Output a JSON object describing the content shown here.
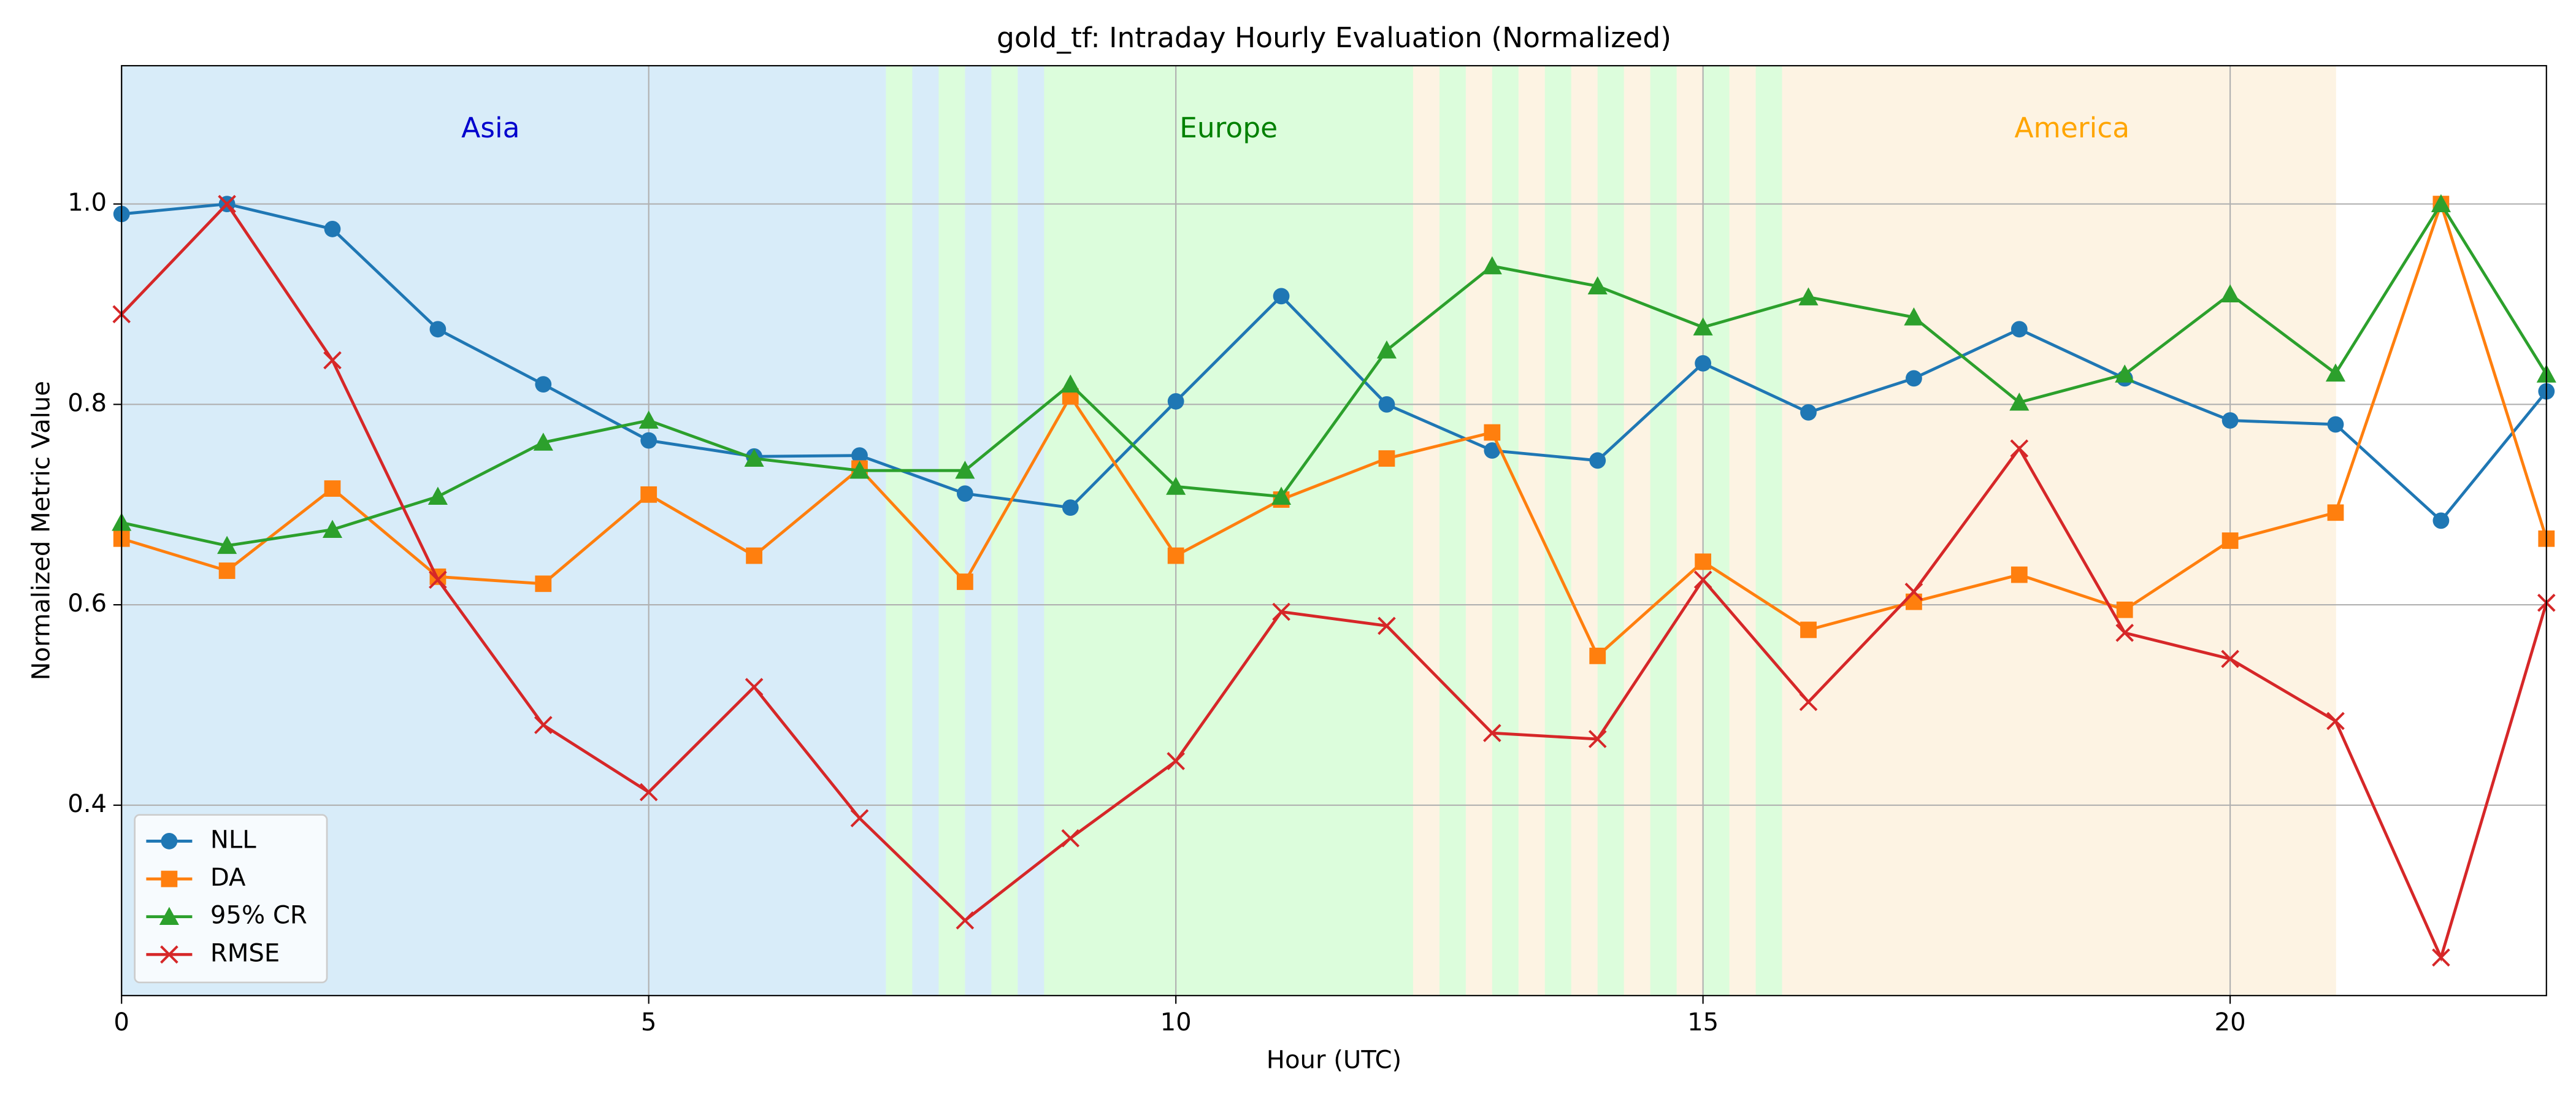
{
  "chart_data": {
    "type": "line",
    "title": "gold_tf: Intraday Hourly Evaluation (Normalized)",
    "x_label": "Hour (UTC)",
    "y_label": "Normalized Metric Value",
    "x": [
      0,
      1,
      2,
      3,
      4,
      5,
      6,
      7,
      8,
      9,
      10,
      11,
      12,
      13,
      14,
      15,
      16,
      17,
      18,
      19,
      20,
      21,
      22,
      23
    ],
    "series": [
      {
        "name": "NLL",
        "color": "#1f77b4",
        "marker": "circle",
        "values": [
          0.99,
          1.0,
          0.975,
          0.875,
          0.82,
          0.764,
          0.748,
          0.749,
          0.711,
          0.697,
          0.803,
          0.908,
          0.8,
          0.754,
          0.744,
          0.841,
          0.792,
          0.826,
          0.875,
          0.826,
          0.784,
          0.78,
          0.684,
          0.813
        ]
      },
      {
        "name": "DA",
        "color": "#ff7f0e",
        "marker": "square",
        "values": [
          0.666,
          0.634,
          0.716,
          0.628,
          0.621,
          0.71,
          0.649,
          0.736,
          0.623,
          0.808,
          0.649,
          0.705,
          0.746,
          0.772,
          0.549,
          0.643,
          0.575,
          0.603,
          0.63,
          0.595,
          0.664,
          0.692,
          1.0,
          0.666
        ]
      },
      {
        "name": "95% CR",
        "color": "#2ca02c",
        "marker": "triangle",
        "values": [
          0.682,
          0.659,
          0.675,
          0.708,
          0.762,
          0.784,
          0.746,
          0.734,
          0.734,
          0.82,
          0.718,
          0.708,
          0.854,
          0.938,
          0.918,
          0.877,
          0.907,
          0.887,
          0.802,
          0.83,
          0.91,
          0.831,
          1.0,
          0.83
        ]
      },
      {
        "name": "RMSE",
        "color": "#d62728",
        "marker": "x",
        "values": [
          0.89,
          1.0,
          0.844,
          0.625,
          0.48,
          0.413,
          0.518,
          0.387,
          0.285,
          0.367,
          0.444,
          0.593,
          0.579,
          0.472,
          0.466,
          0.625,
          0.503,
          0.613,
          0.756,
          0.572,
          0.546,
          0.484,
          0.248,
          0.602
        ]
      }
    ],
    "regions": [
      {
        "name": "Asia",
        "color": "#0000cd",
        "fill": "#d8ecf9",
        "start": 0,
        "end": 9
      },
      {
        "name": "Europe",
        "color": "#008000",
        "fill": "#dcfddc",
        "start": 7,
        "end": 16
      },
      {
        "name": "America",
        "color": "#ffa500",
        "fill": "#fdf3e3",
        "start": 12,
        "end": 21
      }
    ],
    "xlim": [
      0,
      23
    ],
    "xticks": [
      0,
      5,
      10,
      15,
      20
    ],
    "ylim": [
      0.21,
      1.138
    ],
    "yticks": [
      0.4,
      0.6,
      0.8,
      {
        "value": 1,
        "label": "1.0"
      }
    ],
    "grid": true,
    "legend": "lower left"
  }
}
